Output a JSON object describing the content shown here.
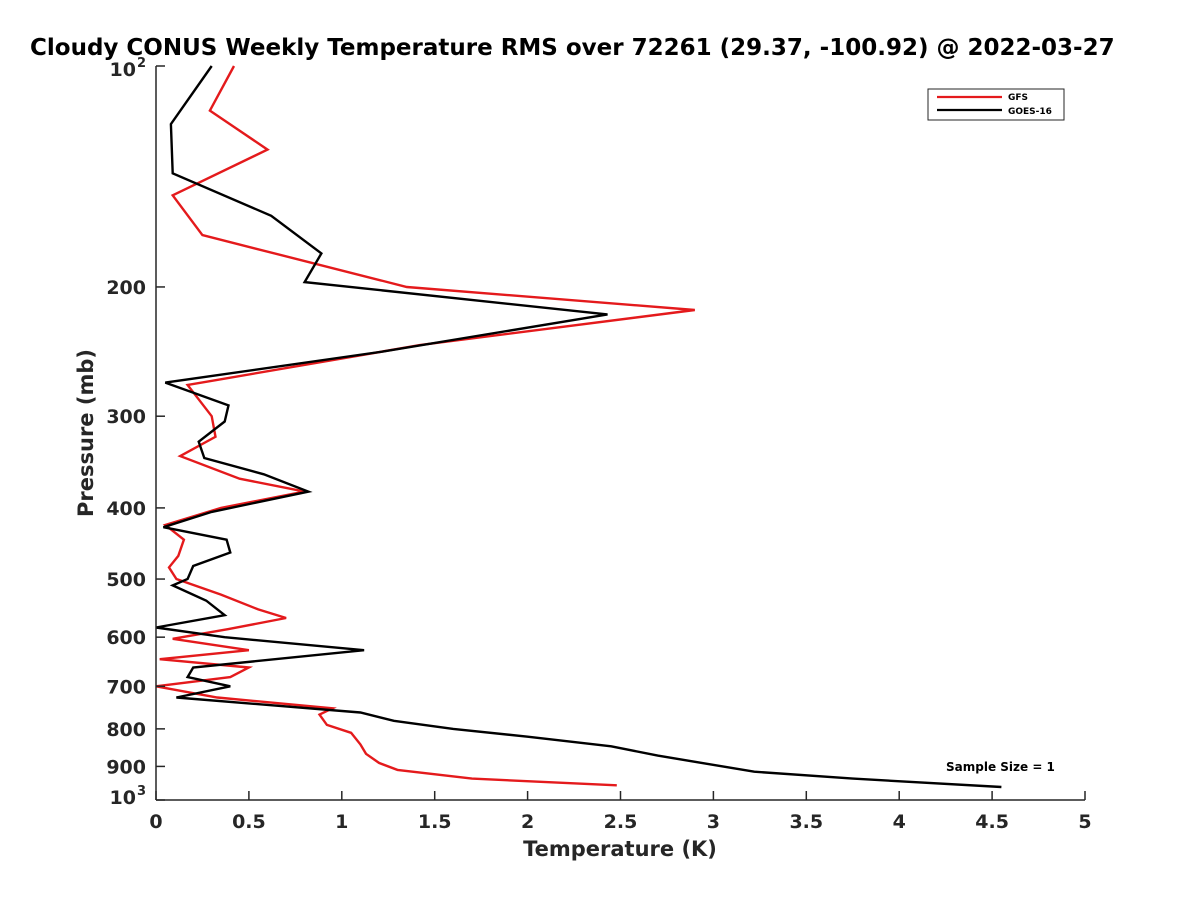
{
  "chart_data": {
    "type": "line",
    "title": "Cloudy CONUS Weekly Temperature RMS over 72261 (29.37, -100.92) @ 2022-03-27",
    "xlabel": "Temperature (K)",
    "ylabel": "Pressure (mb)",
    "xlim": [
      0,
      5
    ],
    "ylim": [
      100,
      1000
    ],
    "y_scale": "log",
    "y_reversed": true,
    "grid": false,
    "legend_position": "top-right",
    "x_ticks": [
      {
        "value": 0,
        "label": "0"
      },
      {
        "value": 0.5,
        "label": "0.5"
      },
      {
        "value": 1,
        "label": "1"
      },
      {
        "value": 1.5,
        "label": "1.5"
      },
      {
        "value": 2,
        "label": "2"
      },
      {
        "value": 2.5,
        "label": "2.5"
      },
      {
        "value": 3,
        "label": "3"
      },
      {
        "value": 3.5,
        "label": "3.5"
      },
      {
        "value": 4,
        "label": "4"
      },
      {
        "value": 4.5,
        "label": "4.5"
      },
      {
        "value": 5,
        "label": "5"
      }
    ],
    "y_ticks": [
      {
        "value": 100,
        "label": "10",
        "exponent": "2"
      },
      {
        "value": 200,
        "label": "200"
      },
      {
        "value": 300,
        "label": "300"
      },
      {
        "value": 400,
        "label": "400"
      },
      {
        "value": 500,
        "label": "500"
      },
      {
        "value": 600,
        "label": "600"
      },
      {
        "value": 700,
        "label": "700"
      },
      {
        "value": 800,
        "label": "800"
      },
      {
        "value": 900,
        "label": "900"
      },
      {
        "value": 1000,
        "label": "10",
        "exponent": "3"
      }
    ],
    "series": [
      {
        "name": "GFS",
        "color": "#e41a1c",
        "points": [
          [
            0.42,
            100
          ],
          [
            0.29,
            115
          ],
          [
            0.6,
            130
          ],
          [
            0.09,
            150
          ],
          [
            0.25,
            170
          ],
          [
            1.35,
            200
          ],
          [
            2.9,
            215
          ],
          [
            1.42,
            240
          ],
          [
            0.17,
            272
          ],
          [
            0.3,
            300
          ],
          [
            0.32,
            320
          ],
          [
            0.13,
            340
          ],
          [
            0.45,
            365
          ],
          [
            0.8,
            380
          ],
          [
            0.35,
            400
          ],
          [
            0.05,
            422
          ],
          [
            0.15,
            442
          ],
          [
            0.12,
            465
          ],
          [
            0.07,
            482
          ],
          [
            0.11,
            500
          ],
          [
            0.35,
            525
          ],
          [
            0.55,
            550
          ],
          [
            0.7,
            565
          ],
          [
            0.39,
            585
          ],
          [
            0.09,
            603
          ],
          [
            0.5,
            625
          ],
          [
            0.02,
            643
          ],
          [
            0.5,
            660
          ],
          [
            0.4,
            680
          ],
          [
            0.0,
            700
          ],
          [
            0.33,
            725
          ],
          [
            0.95,
            750
          ],
          [
            0.88,
            765
          ],
          [
            0.92,
            790
          ],
          [
            1.05,
            810
          ],
          [
            1.1,
            840
          ],
          [
            1.13,
            865
          ],
          [
            1.2,
            890
          ],
          [
            1.3,
            910
          ],
          [
            1.7,
            935
          ],
          [
            2.48,
            955
          ]
        ]
      },
      {
        "name": "GOES-16",
        "color": "#000000",
        "points": [
          [
            0.3,
            100
          ],
          [
            0.08,
            120
          ],
          [
            0.09,
            140
          ],
          [
            0.62,
            160
          ],
          [
            0.89,
            180
          ],
          [
            0.8,
            197
          ],
          [
            2.43,
            218
          ],
          [
            1.22,
            245
          ],
          [
            0.05,
            270
          ],
          [
            0.39,
            290
          ],
          [
            0.37,
            305
          ],
          [
            0.23,
            325
          ],
          [
            0.26,
            342
          ],
          [
            0.58,
            360
          ],
          [
            0.82,
            380
          ],
          [
            0.3,
            405
          ],
          [
            0.04,
            425
          ],
          [
            0.38,
            442
          ],
          [
            0.4,
            460
          ],
          [
            0.2,
            480
          ],
          [
            0.17,
            500
          ],
          [
            0.09,
            510
          ],
          [
            0.27,
            535
          ],
          [
            0.37,
            560
          ],
          [
            0.0,
            582
          ],
          [
            0.37,
            600
          ],
          [
            1.12,
            625
          ],
          [
            0.2,
            660
          ],
          [
            0.17,
            680
          ],
          [
            0.4,
            700
          ],
          [
            0.11,
            725
          ],
          [
            1.1,
            760
          ],
          [
            1.28,
            780
          ],
          [
            1.6,
            800
          ],
          [
            2.0,
            820
          ],
          [
            2.45,
            845
          ],
          [
            2.7,
            870
          ],
          [
            3.22,
            915
          ],
          [
            3.75,
            935
          ],
          [
            4.55,
            960
          ]
        ]
      }
    ],
    "annotation": "Sample Size = 1"
  }
}
